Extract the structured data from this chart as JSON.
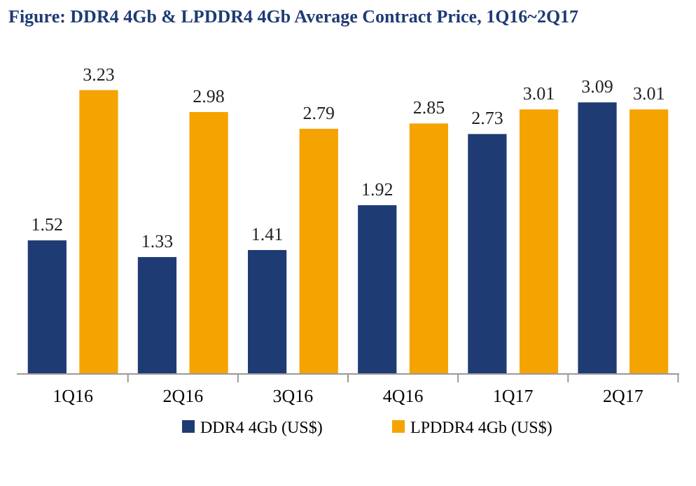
{
  "chart_data": {
    "type": "bar",
    "title": "Figure: DDR4 4Gb & LPDDR4 4Gb Average Contract Price, 1Q16~2Q17",
    "categories": [
      "1Q16",
      "2Q16",
      "3Q16",
      "4Q16",
      "1Q17",
      "2Q17"
    ],
    "series": [
      {
        "name": "DDR4 4Gb (US$)",
        "color": "#1f3b73",
        "values": [
          1.52,
          1.33,
          1.41,
          1.92,
          2.73,
          3.09
        ]
      },
      {
        "name": "LPDDR4 4Gb (US$)",
        "color": "#f5a300",
        "values": [
          3.23,
          2.98,
          2.79,
          2.85,
          3.01,
          3.01
        ]
      }
    ],
    "data_labels": true,
    "legend": "bottom",
    "grid": false
  }
}
